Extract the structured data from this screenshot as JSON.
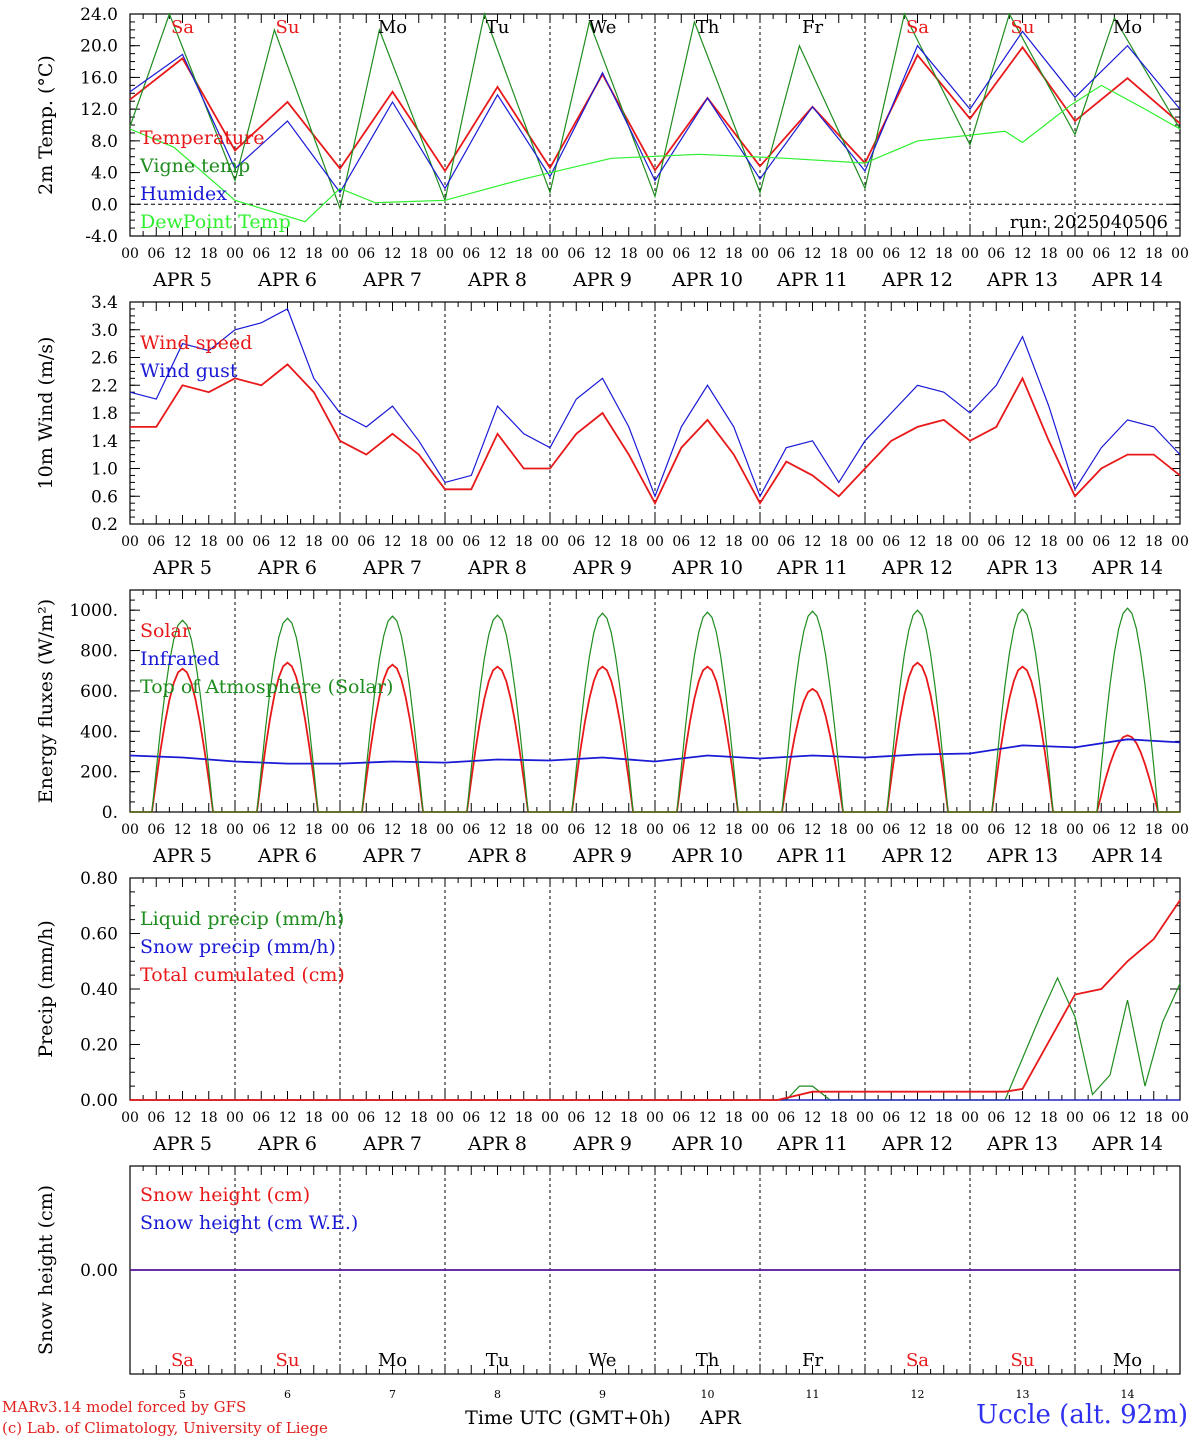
{
  "colors": {
    "red": "#e8191a",
    "green": "#1e8c1e",
    "blue": "#1a1ad6",
    "lightgreen": "#2ef02e",
    "weekend": "#e8191a",
    "weekday": "#000000"
  },
  "days": [
    {
      "abbr": "Sa",
      "date": "APR  5",
      "num": "5",
      "weekend": true
    },
    {
      "abbr": "Su",
      "date": "APR  6",
      "num": "6",
      "weekend": true
    },
    {
      "abbr": "Mo",
      "date": "APR  7",
      "num": "7",
      "weekend": false
    },
    {
      "abbr": "Tu",
      "date": "APR  8",
      "num": "8",
      "weekend": false
    },
    {
      "abbr": "We",
      "date": "APR  9",
      "num": "9",
      "weekend": false
    },
    {
      "abbr": "Th",
      "date": "APR 10",
      "num": "10",
      "weekend": false
    },
    {
      "abbr": "Fr",
      "date": "APR 11",
      "num": "11",
      "weekend": false
    },
    {
      "abbr": "Sa",
      "date": "APR 12",
      "num": "12",
      "weekend": true
    },
    {
      "abbr": "Su",
      "date": "APR 13",
      "num": "13",
      "weekend": true
    },
    {
      "abbr": "Mo",
      "date": "APR 14",
      "num": "14",
      "weekend": false
    }
  ],
  "hour_ticks": [
    "00",
    "06",
    "12",
    "18"
  ],
  "last_hour_tick": "00",
  "chart_data": [
    {
      "type": "line",
      "ylabel": "2m Temp. (°C)",
      "ylim": [
        -4,
        24
      ],
      "yticks": [
        "-4.0",
        "0.0",
        "4.0",
        "8.0",
        "12.0",
        "16.0",
        "20.0",
        "24.0"
      ],
      "zero_line": true,
      "annotation": "run: 2025040506",
      "legend_placement": "top-left",
      "x_unit": "hours since APR 5 00 UTC",
      "series": [
        {
          "name": "Temperature",
          "color": "red",
          "x": [
            0,
            12,
            24,
            36,
            48,
            60,
            72,
            84,
            96,
            108,
            120,
            132,
            144,
            156,
            168,
            180,
            192,
            204,
            216,
            228,
            240
          ],
          "values": [
            13.2,
            18.4,
            6.8,
            12.9,
            4.5,
            14.2,
            4.2,
            14.8,
            4.6,
            16.4,
            4.3,
            13.4,
            4.8,
            12.3,
            5.2,
            18.8,
            10.8,
            19.8,
            10.5,
            15.9,
            10.2
          ]
        },
        {
          "name": "Vigne temp",
          "color": "green",
          "x": [
            0,
            9,
            24,
            33,
            48,
            57,
            72,
            81,
            96,
            105,
            120,
            129,
            144,
            153,
            168,
            177,
            192,
            201,
            216,
            225,
            240
          ],
          "values": [
            9.8,
            24.0,
            3.0,
            22.0,
            -0.5,
            22.0,
            0.5,
            24.0,
            1.5,
            23.0,
            1.0,
            23.0,
            1.5,
            20.0,
            2.0,
            24.0,
            7.5,
            24.0,
            8.8,
            23.5,
            9.5
          ]
        },
        {
          "name": "Humidex",
          "color": "blue",
          "x": [
            0,
            12,
            24,
            36,
            48,
            60,
            72,
            84,
            96,
            108,
            120,
            132,
            144,
            156,
            168,
            180,
            192,
            204,
            216,
            228,
            240
          ],
          "values": [
            14.2,
            18.9,
            4.5,
            10.5,
            1.5,
            12.9,
            2.0,
            13.8,
            3.5,
            16.6,
            3.0,
            13.4,
            3.2,
            12.3,
            4.2,
            20.0,
            12.0,
            21.8,
            13.5,
            20.0,
            12.0
          ]
        },
        {
          "name": "DewPoint Temp",
          "color": "lightgreen",
          "x": [
            0,
            10,
            24,
            40,
            48,
            56,
            72,
            90,
            110,
            130,
            150,
            168,
            180,
            200,
            204,
            215,
            222,
            232,
            240
          ],
          "values": [
            9.5,
            7.2,
            0.5,
            -2.2,
            2.0,
            0.2,
            0.5,
            3.2,
            5.8,
            6.3,
            5.8,
            5.2,
            8.0,
            9.2,
            7.8,
            12.5,
            15.0,
            12.0,
            9.5
          ]
        }
      ]
    },
    {
      "type": "line",
      "ylabel": "10m Wind (m/s)",
      "ylim": [
        0.2,
        3.4
      ],
      "yticks": [
        "0.2",
        "0.6",
        "1.0",
        "1.4",
        "1.8",
        "2.2",
        "2.6",
        "3.0",
        "3.4"
      ],
      "legend_placement": "top-left",
      "x_unit": "hours since APR 5 00 UTC",
      "series": [
        {
          "name": "Wind speed",
          "color": "red",
          "x": [
            0,
            6,
            12,
            18,
            24,
            30,
            36,
            42,
            48,
            54,
            60,
            66,
            72,
            78,
            84,
            90,
            96,
            102,
            108,
            114,
            120,
            126,
            132,
            138,
            144,
            150,
            156,
            162,
            168,
            174,
            180,
            186,
            192,
            198,
            204,
            210,
            216,
            222,
            228,
            234,
            240
          ],
          "values": [
            1.6,
            1.6,
            2.2,
            2.1,
            2.3,
            2.2,
            2.5,
            2.1,
            1.4,
            1.2,
            1.5,
            1.2,
            0.7,
            0.7,
            1.5,
            1.0,
            1.0,
            1.5,
            1.8,
            1.2,
            0.5,
            1.3,
            1.7,
            1.2,
            0.5,
            1.1,
            0.9,
            0.6,
            1.0,
            1.4,
            1.6,
            1.7,
            1.4,
            1.6,
            2.3,
            1.4,
            0.6,
            1.0,
            1.2,
            1.2,
            0.9
          ]
        },
        {
          "name": "Wind gust",
          "color": "blue",
          "x": [
            0,
            6,
            12,
            18,
            24,
            30,
            36,
            42,
            48,
            54,
            60,
            66,
            72,
            78,
            84,
            90,
            96,
            102,
            108,
            114,
            120,
            126,
            132,
            138,
            144,
            150,
            156,
            162,
            168,
            174,
            180,
            186,
            192,
            198,
            204,
            210,
            216,
            222,
            228,
            234,
            240
          ],
          "values": [
            2.1,
            2.0,
            2.8,
            2.7,
            3.0,
            3.1,
            3.3,
            2.3,
            1.8,
            1.6,
            1.9,
            1.4,
            0.8,
            0.9,
            1.9,
            1.5,
            1.3,
            2.0,
            2.3,
            1.6,
            0.6,
            1.6,
            2.2,
            1.6,
            0.6,
            1.3,
            1.4,
            0.8,
            1.4,
            1.8,
            2.2,
            2.1,
            1.8,
            2.2,
            2.9,
            1.9,
            0.7,
            1.3,
            1.7,
            1.6,
            1.2
          ]
        }
      ]
    },
    {
      "type": "line",
      "ylabel": "Energy fluxes (W/m²)",
      "ylim": [
        0,
        1100
      ],
      "yticks": [
        "0.",
        "200.",
        "400.",
        "600.",
        "800.",
        "1000."
      ],
      "legend_placement": "top-left",
      "x_unit": "hours since APR 5 00 UTC",
      "series": [
        {
          "name": "Solar",
          "color": "red",
          "daily_peak": [
            710,
            740,
            730,
            720,
            720,
            720,
            610,
            740,
            720,
            380
          ],
          "peak_hour": 12
        },
        {
          "name": "Infrared",
          "color": "blue",
          "x": [
            0,
            12,
            24,
            36,
            48,
            60,
            72,
            84,
            96,
            108,
            120,
            132,
            144,
            156,
            168,
            180,
            192,
            204,
            216,
            228,
            240
          ],
          "values": [
            280,
            270,
            250,
            240,
            240,
            250,
            245,
            260,
            255,
            270,
            250,
            280,
            265,
            280,
            270,
            285,
            290,
            330,
            320,
            360,
            345
          ]
        },
        {
          "name": "Top of Atmosphere (Solar)",
          "color": "green",
          "daily_peak": [
            950,
            960,
            970,
            975,
            985,
            990,
            995,
            1000,
            1005,
            1010
          ],
          "peak_hour": 12
        }
      ]
    },
    {
      "type": "line",
      "ylabel": "Precip (mm/h)",
      "ylim": [
        0,
        0.8
      ],
      "yticks": [
        "0.00",
        "0.20",
        "0.40",
        "0.60",
        "0.80"
      ],
      "legend_placement": "top-left",
      "x_unit": "hours since APR 5 00 UTC",
      "series": [
        {
          "name": "Liquid precip (mm/h)",
          "color": "green",
          "x": [
            0,
            150,
            153,
            156,
            160,
            200,
            208,
            212,
            216,
            220,
            224,
            228,
            232,
            236,
            240
          ],
          "values": [
            0,
            0,
            0.05,
            0.05,
            0,
            0,
            0.3,
            0.44,
            0.3,
            0.02,
            0.09,
            0.36,
            0.05,
            0.28,
            0.42
          ]
        },
        {
          "name": "Snow precip (mm/h)",
          "color": "blue",
          "x": [
            0,
            240
          ],
          "values": [
            0,
            0
          ]
        },
        {
          "name": "Total cumulated (cm)",
          "color": "red",
          "x": [
            0,
            148,
            156,
            200,
            204,
            216,
            222,
            228,
            234,
            240
          ],
          "values": [
            0,
            0,
            0.03,
            0.03,
            0.04,
            0.38,
            0.4,
            0.5,
            0.58,
            0.72
          ]
        }
      ]
    },
    {
      "type": "line",
      "ylabel": "Snow height (cm)",
      "ylim": [
        -1,
        1
      ],
      "yticks": [
        "0.00"
      ],
      "legend_placement": "top-left",
      "x_unit": "hours since APR 5 00 UTC",
      "xlabel_prefix": "Time UTC (GMT+0h)",
      "xlabel_month": "APR",
      "series": [
        {
          "name": "Snow height (cm)",
          "color": "red",
          "x": [
            0,
            240
          ],
          "values": [
            0,
            0
          ]
        },
        {
          "name": "Snow height (cm W.E.)",
          "color": "blue",
          "x": [
            0,
            240
          ],
          "values": [
            0,
            0
          ]
        }
      ]
    }
  ],
  "footer": {
    "line1": "MARv3.14 model forced by GFS",
    "line2": "(c) Lab. of Climatology, University of Liege",
    "station": "Uccle (alt. 92m)"
  }
}
